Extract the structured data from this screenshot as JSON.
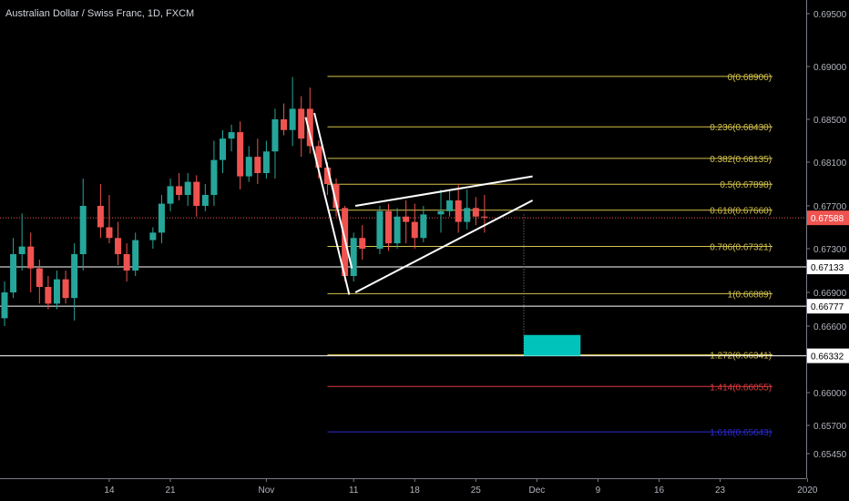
{
  "colors": {
    "background": "#000000",
    "axis": "#787b86",
    "text": "#b2b5be",
    "bull": "#26a69a",
    "bear": "#ef5350",
    "fib": "#d4c24c",
    "fib_red": "#e03a3e",
    "fib_blue": "#2a2ad0",
    "current": "#ef5350",
    "white": "#ffffff",
    "target": "#00c4bb"
  },
  "chart_data": {
    "type": "candlestick",
    "title": "Australian Dollar / Swiss Franc, 1D, FXCM",
    "y_axis": {
      "ticks": [
        "0.69500",
        "0.69000",
        "0.68500",
        "0.68100",
        "0.67700",
        "0.67300",
        "0.66900",
        "0.66600",
        "0.66000",
        "0.65700",
        "0.65450"
      ],
      "ylim": [
        0.6525,
        0.6978
      ]
    },
    "x_axis": {
      "ticks": [
        {
          "label": "14",
          "day": 12
        },
        {
          "label": "21",
          "day": 19
        },
        {
          "label": "Nov",
          "day": 30
        },
        {
          "label": "11",
          "day": 40
        },
        {
          "label": "18",
          "day": 47
        },
        {
          "label": "25",
          "day": 54
        },
        {
          "label": "Dec",
          "day": 61
        },
        {
          "label": "9",
          "day": 68
        },
        {
          "label": "16",
          "day": 75
        },
        {
          "label": "23",
          "day": 82
        },
        {
          "label": "2020",
          "day": 92
        }
      ],
      "xlim": [
        0,
        94
      ]
    },
    "candles": [
      {
        "d": 0,
        "o": 0.6667,
        "h": 0.67,
        "l": 0.666,
        "c": 0.669
      },
      {
        "d": 1,
        "o": 0.669,
        "h": 0.674,
        "l": 0.6685,
        "c": 0.6725
      },
      {
        "d": 2,
        "o": 0.6725,
        "h": 0.6763,
        "l": 0.671,
        "c": 0.6732
      },
      {
        "d": 3,
        "o": 0.6732,
        "h": 0.6745,
        "l": 0.669,
        "c": 0.6712
      },
      {
        "d": 4,
        "o": 0.6712,
        "h": 0.672,
        "l": 0.668,
        "c": 0.6695
      },
      {
        "d": 5,
        "o": 0.6695,
        "h": 0.6705,
        "l": 0.6675,
        "c": 0.668
      },
      {
        "d": 6,
        "o": 0.668,
        "h": 0.671,
        "l": 0.6675,
        "c": 0.6702
      },
      {
        "d": 7,
        "o": 0.6702,
        "h": 0.671,
        "l": 0.668,
        "c": 0.6685
      },
      {
        "d": 8,
        "o": 0.6685,
        "h": 0.6735,
        "l": 0.6665,
        "c": 0.6725
      },
      {
        "d": 9,
        "o": 0.6725,
        "h": 0.6795,
        "l": 0.671,
        "c": 0.677
      },
      {
        "d": 11,
        "o": 0.677,
        "h": 0.679,
        "l": 0.674,
        "c": 0.675
      },
      {
        "d": 12,
        "o": 0.675,
        "h": 0.678,
        "l": 0.6735,
        "c": 0.674
      },
      {
        "d": 13,
        "o": 0.674,
        "h": 0.6755,
        "l": 0.6715,
        "c": 0.6725
      },
      {
        "d": 14,
        "o": 0.6725,
        "h": 0.6735,
        "l": 0.67,
        "c": 0.671
      },
      {
        "d": 15,
        "o": 0.671,
        "h": 0.6745,
        "l": 0.6705,
        "c": 0.6738
      },
      {
        "d": 17,
        "o": 0.6738,
        "h": 0.675,
        "l": 0.673,
        "c": 0.6745
      },
      {
        "d": 18,
        "o": 0.6745,
        "h": 0.678,
        "l": 0.6735,
        "c": 0.6772
      },
      {
        "d": 19,
        "o": 0.6772,
        "h": 0.6795,
        "l": 0.6765,
        "c": 0.6788
      },
      {
        "d": 20,
        "o": 0.6788,
        "h": 0.68,
        "l": 0.6775,
        "c": 0.678
      },
      {
        "d": 21,
        "o": 0.678,
        "h": 0.68,
        "l": 0.677,
        "c": 0.6792
      },
      {
        "d": 22,
        "o": 0.6792,
        "h": 0.6798,
        "l": 0.676,
        "c": 0.677
      },
      {
        "d": 23,
        "o": 0.677,
        "h": 0.679,
        "l": 0.6765,
        "c": 0.678
      },
      {
        "d": 24,
        "o": 0.678,
        "h": 0.683,
        "l": 0.677,
        "c": 0.6812
      },
      {
        "d": 25,
        "o": 0.6812,
        "h": 0.684,
        "l": 0.68,
        "c": 0.6832
      },
      {
        "d": 26,
        "o": 0.6832,
        "h": 0.6845,
        "l": 0.682,
        "c": 0.6838
      },
      {
        "d": 27,
        "o": 0.6838,
        "h": 0.6848,
        "l": 0.6785,
        "c": 0.6797
      },
      {
        "d": 28,
        "o": 0.6797,
        "h": 0.6825,
        "l": 0.6792,
        "c": 0.6815
      },
      {
        "d": 29,
        "o": 0.6815,
        "h": 0.6832,
        "l": 0.679,
        "c": 0.68
      },
      {
        "d": 30,
        "o": 0.68,
        "h": 0.683,
        "l": 0.6795,
        "c": 0.682
      },
      {
        "d": 31,
        "o": 0.682,
        "h": 0.686,
        "l": 0.6795,
        "c": 0.685
      },
      {
        "d": 32,
        "o": 0.685,
        "h": 0.6865,
        "l": 0.6835,
        "c": 0.684
      },
      {
        "d": 33,
        "o": 0.684,
        "h": 0.689,
        "l": 0.6825,
        "c": 0.686
      },
      {
        "d": 34,
        "o": 0.686,
        "h": 0.6872,
        "l": 0.6815,
        "c": 0.6832
      },
      {
        "d": 35,
        "o": 0.686,
        "h": 0.688,
        "l": 0.6818,
        "c": 0.6825
      },
      {
        "d": 36,
        "o": 0.6825,
        "h": 0.683,
        "l": 0.6795,
        "c": 0.6805
      },
      {
        "d": 37,
        "o": 0.6805,
        "h": 0.681,
        "l": 0.678,
        "c": 0.679
      },
      {
        "d": 38,
        "o": 0.679,
        "h": 0.6795,
        "l": 0.676,
        "c": 0.6768
      },
      {
        "d": 39,
        "o": 0.6768,
        "h": 0.677,
        "l": 0.67,
        "c": 0.6705
      },
      {
        "d": 40,
        "o": 0.6705,
        "h": 0.6745,
        "l": 0.67,
        "c": 0.674
      },
      {
        "d": 41,
        "o": 0.674,
        "h": 0.6752,
        "l": 0.672,
        "c": 0.673
      },
      {
        "d": 43,
        "o": 0.673,
        "h": 0.677,
        "l": 0.6725,
        "c": 0.6765
      },
      {
        "d": 44,
        "o": 0.6765,
        "h": 0.6772,
        "l": 0.6728,
        "c": 0.6735
      },
      {
        "d": 45,
        "o": 0.6735,
        "h": 0.6768,
        "l": 0.673,
        "c": 0.676
      },
      {
        "d": 46,
        "o": 0.676,
        "h": 0.6775,
        "l": 0.6735,
        "c": 0.6755
      },
      {
        "d": 47,
        "o": 0.6755,
        "h": 0.6772,
        "l": 0.673,
        "c": 0.674
      },
      {
        "d": 48,
        "o": 0.674,
        "h": 0.677,
        "l": 0.6736,
        "c": 0.6762
      },
      {
        "d": 50,
        "o": 0.6762,
        "h": 0.6785,
        "l": 0.6745,
        "c": 0.6765
      },
      {
        "d": 51,
        "o": 0.6765,
        "h": 0.6785,
        "l": 0.676,
        "c": 0.6775
      },
      {
        "d": 52,
        "o": 0.6775,
        "h": 0.679,
        "l": 0.6745,
        "c": 0.6755
      },
      {
        "d": 53,
        "o": 0.6755,
        "h": 0.6785,
        "l": 0.6748,
        "c": 0.6768
      },
      {
        "d": 54,
        "o": 0.6768,
        "h": 0.6778,
        "l": 0.6752,
        "c": 0.676
      },
      {
        "d": 55,
        "o": 0.676,
        "h": 0.678,
        "l": 0.6745,
        "c": 0.6759
      }
    ],
    "annotations": {
      "current_price": {
        "label": "0.67588",
        "value": 0.67588
      },
      "fib_levels": [
        {
          "label": "0(0.68906)",
          "value": 0.68906,
          "color": "fib"
        },
        {
          "label": "0.236(0.68430)",
          "value": 0.6843,
          "color": "fib"
        },
        {
          "label": "0.382(0.68135)",
          "value": 0.68135,
          "color": "fib"
        },
        {
          "label": "0.5(0.67898)",
          "value": 0.67898,
          "color": "fib"
        },
        {
          "label": "0.618(0.67660)",
          "value": 0.6766,
          "color": "fib"
        },
        {
          "label": "0.786(0.67321)",
          "value": 0.67321,
          "color": "fib"
        },
        {
          "label": "1(0.66889)",
          "value": 0.66889,
          "color": "fib"
        },
        {
          "label": "1.272(0.66341)",
          "value": 0.66341,
          "color": "fib"
        },
        {
          "label": "1.414(0.66055)",
          "value": 0.66055,
          "color": "fib_red"
        },
        {
          "label": "1.618(0.65643)",
          "value": 0.65643,
          "color": "fib_blue"
        }
      ],
      "fib_range": {
        "start_day": 37,
        "end_day": 88
      },
      "horizontal_levels": [
        {
          "label": "0.67133",
          "value": 0.67133
        },
        {
          "label": "0.66777",
          "value": 0.66777
        },
        {
          "label": "0.66332",
          "value": 0.66332
        }
      ],
      "drawn_lines": [
        {
          "d1": 34.5,
          "p1": 0.6852,
          "d2": 39.5,
          "p2": 0.6688
        },
        {
          "d1": 35.5,
          "p1": 0.6856,
          "d2": 39.8,
          "p2": 0.6712
        },
        {
          "d1": 40.2,
          "p1": 0.677,
          "d2": 60.5,
          "p2": 0.6797
        },
        {
          "d1": 40.2,
          "p1": 0.669,
          "d2": 60.5,
          "p2": 0.6775
        }
      ],
      "projection": {
        "day": 59.5,
        "from": 0.6762,
        "to": 0.6634
      },
      "target_box": {
        "d1": 59.5,
        "d2": 66,
        "p1": 0.66332,
        "p2": 0.6652
      }
    }
  }
}
